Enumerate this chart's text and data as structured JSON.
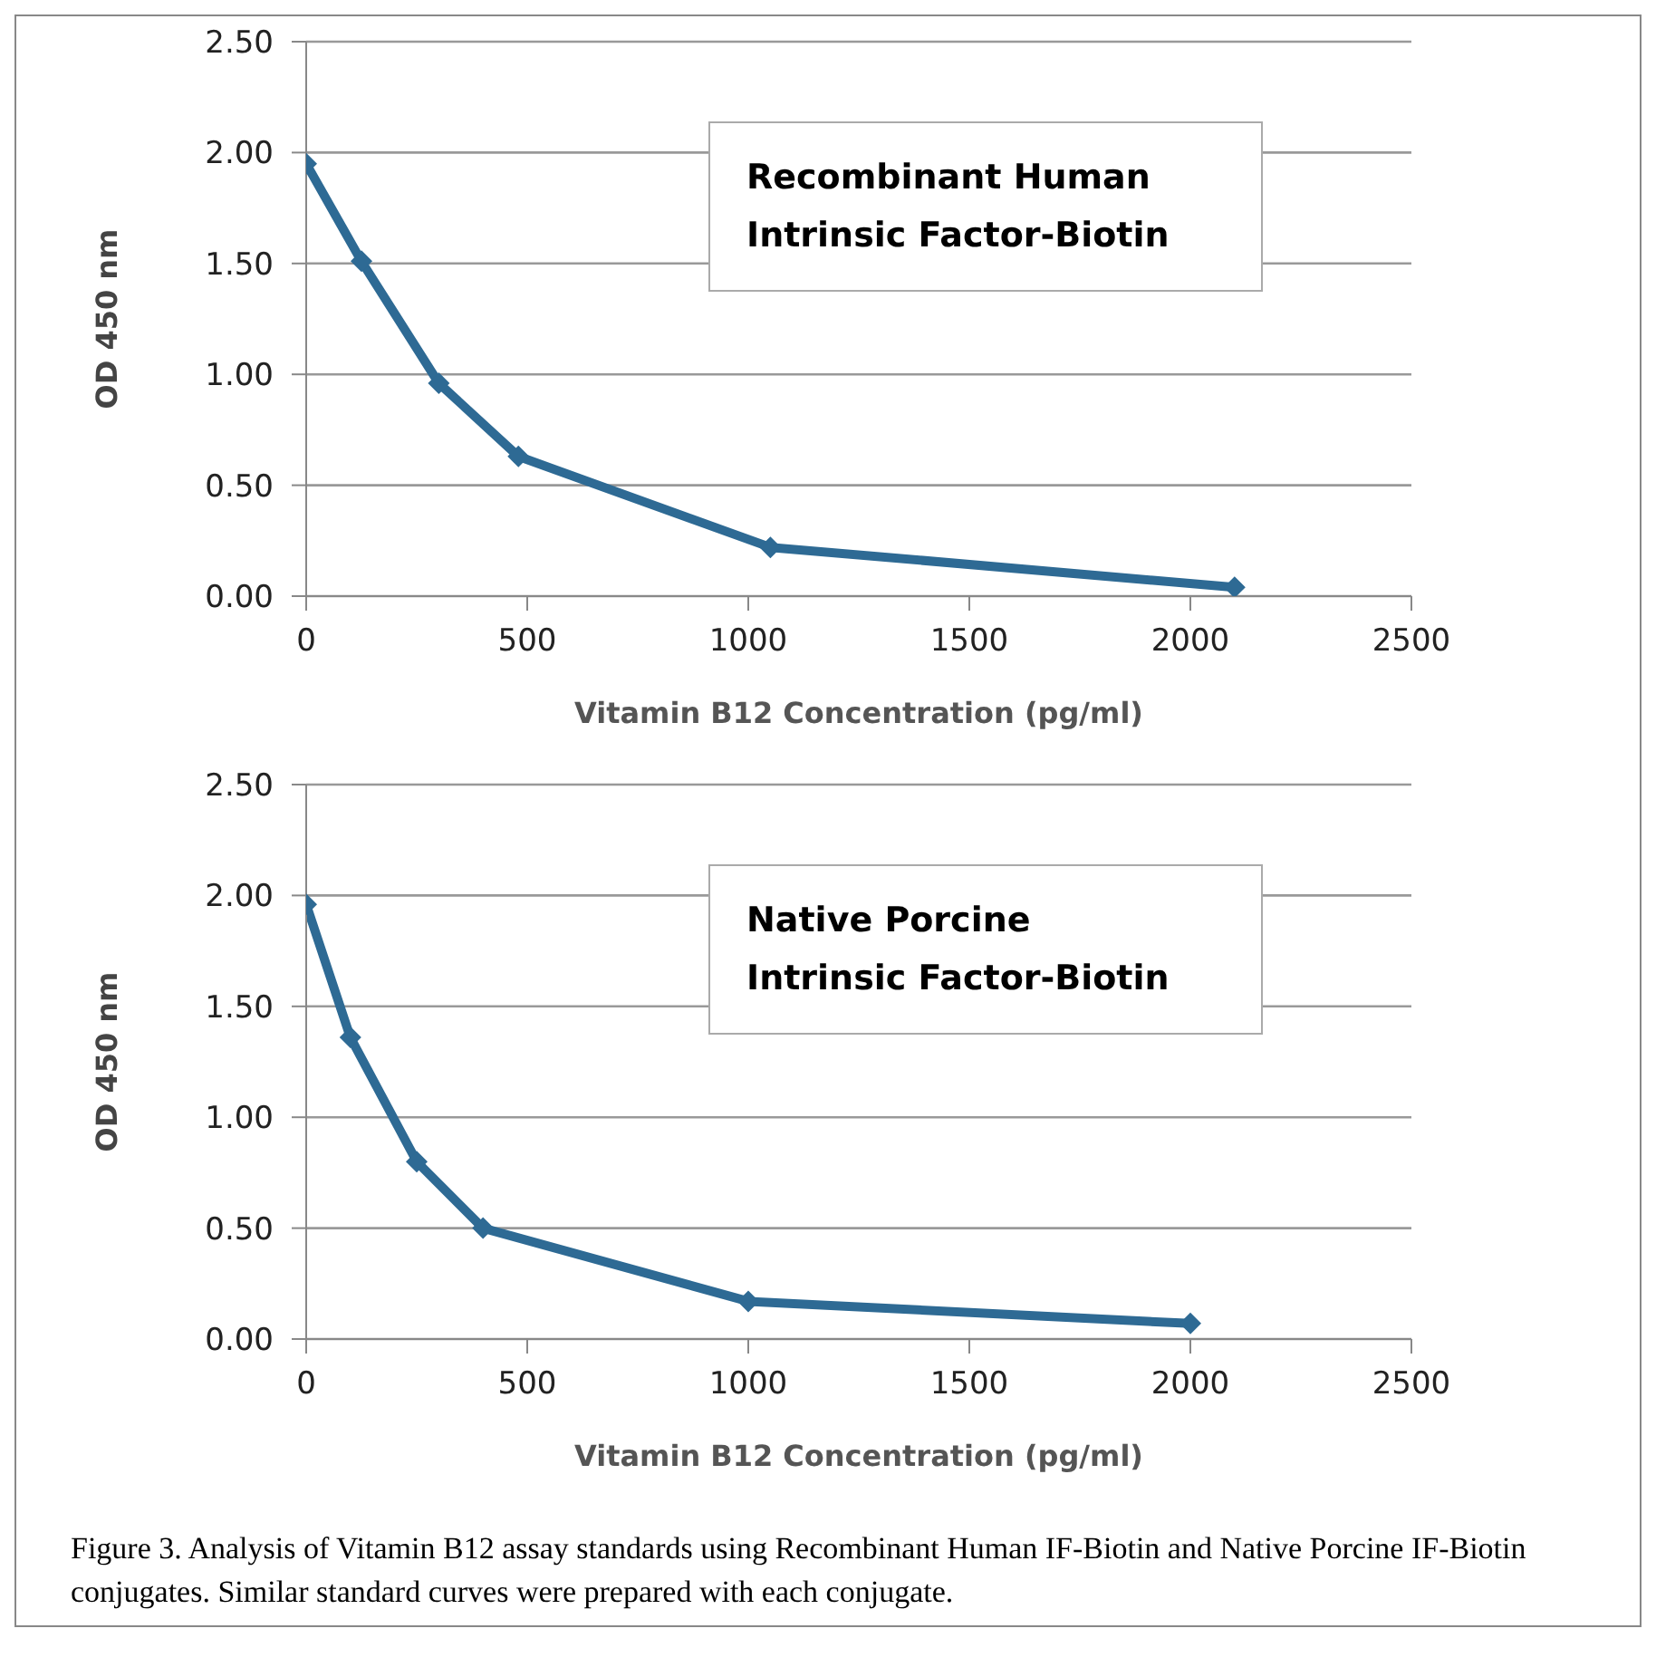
{
  "chart_data": [
    {
      "type": "line",
      "xlabel": "Vitamin B12 Concentration (pg/ml)",
      "ylabel": "OD 450 nm",
      "annotations": [
        "Recombinant Human\nIntrinsic Factor-Biotin"
      ],
      "x": [
        0,
        125,
        300,
        480,
        1050,
        2100
      ],
      "series": [
        {
          "color": "#2e6a94",
          "values": [
            1.95,
            1.51,
            0.96,
            0.63,
            0.22,
            0.04
          ]
        }
      ],
      "xlim": [
        0,
        2500
      ],
      "xticks": [
        0,
        500,
        1000,
        1500,
        2000,
        2500
      ],
      "ylim": [
        0,
        2.5
      ],
      "yticks": [
        {
          "value": 0,
          "label": "0.00"
        },
        {
          "value": 0.5,
          "label": "0.50"
        },
        {
          "value": 1,
          "label": "1.00"
        },
        {
          "value": 1.5,
          "label": "1.50"
        },
        {
          "value": 2,
          "label": "2.00"
        },
        {
          "value": 2.5,
          "label": "2.50"
        }
      ],
      "grid": "y",
      "marker": "diamond",
      "line_style": "solid"
    },
    {
      "type": "line",
      "xlabel": "Vitamin B12 Concentration (pg/ml)",
      "ylabel": "OD 450 nm",
      "annotations": [
        "Native Porcine\nIntrinsic Factor-Biotin",
        "Figure 3. Analysis of Vitamin B12 assay standards using Recombinant Human IF-Biotin and Native Porcine IF-Biotin conjugates. Similar standard curves were prepared with each conjugate."
      ],
      "x": [
        0,
        100,
        250,
        400,
        1000,
        2000
      ],
      "series": [
        {
          "color": "#2e6a94",
          "values": [
            1.96,
            1.36,
            0.8,
            0.5,
            0.17,
            0.07
          ]
        }
      ],
      "xlim": [
        0,
        2500
      ],
      "xticks": [
        0,
        500,
        1000,
        1500,
        2000,
        2500
      ],
      "ylim": [
        0,
        2.5
      ],
      "yticks": [
        {
          "value": 0,
          "label": "0.00"
        },
        {
          "value": 0.5,
          "label": "0.50"
        },
        {
          "value": 1,
          "label": "1.00"
        },
        {
          "value": 1.5,
          "label": "1.50"
        },
        {
          "value": 2,
          "label": "2.00"
        },
        {
          "value": 2.5,
          "label": "2.50"
        }
      ],
      "grid": "y",
      "marker": "diamond",
      "line_style": "solid"
    }
  ]
}
